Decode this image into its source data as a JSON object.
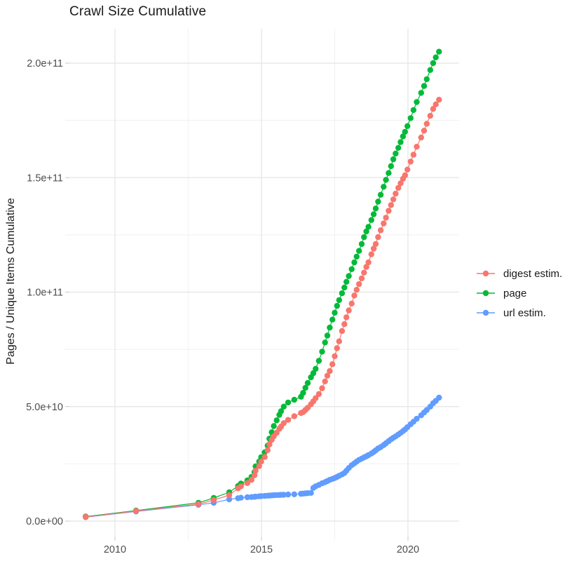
{
  "title": "Crawl Size Cumulative",
  "y_axis_title": "Pages / Unique Items Cumulative",
  "legend": {
    "items": [
      {
        "label": "digest estim.",
        "color": "#F8766D"
      },
      {
        "label": "page",
        "color": "#00BA38"
      },
      {
        "label": "url estim.",
        "color": "#619CFF"
      }
    ]
  },
  "chart_data": {
    "type": "line",
    "title": "Crawl Size Cumulative",
    "xlabel": "",
    "ylabel": "Pages / Unique Items Cumulative",
    "value_unit": "items, in billions (1e9)",
    "x_axis": {
      "ticks": [
        {
          "year": 2010,
          "label": "2010"
        },
        {
          "year": 2015,
          "label": "2015"
        },
        {
          "year": 2020,
          "label": "2020"
        }
      ],
      "minor_years": [
        2012.5,
        2017.5
      ],
      "range": [
        2008.45,
        2021.75
      ]
    },
    "y_axis": {
      "ticks": [
        {
          "value_billions": 0,
          "label": "0.0e+00"
        },
        {
          "value_billions": 50,
          "label": "5.0e+10"
        },
        {
          "value_billions": 100,
          "label": "1.0e+11"
        },
        {
          "value_billions": 150,
          "label": "1.5e+11"
        },
        {
          "value_billions": 200,
          "label": "2.0e+11"
        }
      ],
      "minor_billions": [
        25,
        75,
        125,
        175
      ],
      "range_billions": [
        -8,
        215
      ]
    },
    "legend_position": "right",
    "grid": true,
    "series": [
      {
        "name": "page",
        "color": "#00BA38",
        "points": [
          [
            2009.0,
            2.0
          ],
          [
            2010.72,
            4.6
          ],
          [
            2012.85,
            8.0
          ],
          [
            2013.37,
            10.1
          ],
          [
            2013.9,
            12.6
          ],
          [
            2014.2,
            15.3
          ],
          [
            2014.3,
            16.4
          ],
          [
            2014.52,
            17.8
          ],
          [
            2014.66,
            19.3
          ],
          [
            2014.76,
            21.4
          ],
          [
            2014.8,
            23.9
          ],
          [
            2014.92,
            26.0
          ],
          [
            2014.99,
            27.9
          ],
          [
            2015.11,
            30.0
          ],
          [
            2015.21,
            33.0
          ],
          [
            2015.27,
            36.0
          ],
          [
            2015.35,
            38.8
          ],
          [
            2015.42,
            41.5
          ],
          [
            2015.52,
            44.0
          ],
          [
            2015.61,
            46.4
          ],
          [
            2015.67,
            48.0
          ],
          [
            2015.76,
            50.0
          ],
          [
            2015.91,
            51.8
          ],
          [
            2016.12,
            53.0
          ],
          [
            2016.35,
            54.3
          ],
          [
            2016.42,
            56.0
          ],
          [
            2016.5,
            58.2
          ],
          [
            2016.58,
            60.3
          ],
          [
            2016.69,
            62.8
          ],
          [
            2016.77,
            64.6
          ],
          [
            2016.85,
            66.5
          ],
          [
            2016.96,
            70.0
          ],
          [
            2017.07,
            74.0
          ],
          [
            2017.17,
            78.0
          ],
          [
            2017.25,
            81.0
          ],
          [
            2017.33,
            84.5
          ],
          [
            2017.42,
            88.0
          ],
          [
            2017.5,
            91.0
          ],
          [
            2017.58,
            94.0
          ],
          [
            2017.65,
            96.5
          ],
          [
            2017.75,
            99.5
          ],
          [
            2017.83,
            102.0
          ],
          [
            2017.9,
            104.5
          ],
          [
            2017.98,
            107.0
          ],
          [
            2018.08,
            110.0
          ],
          [
            2018.17,
            113.0
          ],
          [
            2018.25,
            115.5
          ],
          [
            2018.33,
            118.0
          ],
          [
            2018.42,
            121.0
          ],
          [
            2018.5,
            124.0
          ],
          [
            2018.58,
            126.5
          ],
          [
            2018.65,
            128.5
          ],
          [
            2018.75,
            131.5
          ],
          [
            2018.83,
            134.0
          ],
          [
            2018.9,
            136.5
          ],
          [
            2018.98,
            139.5
          ],
          [
            2019.07,
            142.5
          ],
          [
            2019.17,
            146.0
          ],
          [
            2019.25,
            149.0
          ],
          [
            2019.34,
            152.0
          ],
          [
            2019.42,
            155.0
          ],
          [
            2019.5,
            158.0
          ],
          [
            2019.58,
            160.5
          ],
          [
            2019.67,
            163.0
          ],
          [
            2019.75,
            165.5
          ],
          [
            2019.83,
            168.0
          ],
          [
            2019.9,
            170.0
          ],
          [
            2019.98,
            172.5
          ],
          [
            2020.09,
            176.0
          ],
          [
            2020.19,
            179.5
          ],
          [
            2020.3,
            183.0
          ],
          [
            2020.45,
            187.0
          ],
          [
            2020.55,
            190.0
          ],
          [
            2020.64,
            193.0
          ],
          [
            2020.76,
            197.0
          ],
          [
            2020.86,
            200.0
          ],
          [
            2020.95,
            202.5
          ],
          [
            2021.06,
            205.0
          ]
        ]
      },
      {
        "name": "url estim.",
        "color": "#619CFF",
        "points": [
          [
            2009.0,
            1.7
          ],
          [
            2010.72,
            4.2
          ],
          [
            2012.85,
            7.1
          ],
          [
            2013.37,
            8.0
          ],
          [
            2013.9,
            9.5
          ],
          [
            2014.2,
            10.0
          ],
          [
            2014.3,
            10.2
          ],
          [
            2014.52,
            10.4
          ],
          [
            2014.66,
            10.5
          ],
          [
            2014.76,
            10.6
          ],
          [
            2014.8,
            10.7
          ],
          [
            2014.92,
            10.8
          ],
          [
            2014.99,
            10.9
          ],
          [
            2015.11,
            11.0
          ],
          [
            2015.21,
            11.1
          ],
          [
            2015.27,
            11.15
          ],
          [
            2015.35,
            11.2
          ],
          [
            2015.42,
            11.3
          ],
          [
            2015.52,
            11.35
          ],
          [
            2015.61,
            11.4
          ],
          [
            2015.67,
            11.45
          ],
          [
            2015.76,
            11.5
          ],
          [
            2015.91,
            11.6
          ],
          [
            2016.12,
            11.7
          ],
          [
            2016.35,
            11.9
          ],
          [
            2016.42,
            12.0
          ],
          [
            2016.5,
            12.1
          ],
          [
            2016.58,
            12.2
          ],
          [
            2016.69,
            12.3
          ],
          [
            2016.77,
            14.5
          ],
          [
            2016.85,
            15.2
          ],
          [
            2016.96,
            15.8
          ],
          [
            2017.07,
            16.5
          ],
          [
            2017.17,
            17.0
          ],
          [
            2017.25,
            17.5
          ],
          [
            2017.33,
            18.0
          ],
          [
            2017.42,
            18.4
          ],
          [
            2017.5,
            18.8
          ],
          [
            2017.58,
            19.3
          ],
          [
            2017.65,
            19.8
          ],
          [
            2017.75,
            20.4
          ],
          [
            2017.83,
            21.0
          ],
          [
            2017.9,
            22.0
          ],
          [
            2017.98,
            23.2
          ],
          [
            2018.08,
            24.4
          ],
          [
            2018.17,
            25.2
          ],
          [
            2018.25,
            26.0
          ],
          [
            2018.33,
            26.7
          ],
          [
            2018.42,
            27.3
          ],
          [
            2018.5,
            27.8
          ],
          [
            2018.58,
            28.3
          ],
          [
            2018.65,
            28.8
          ],
          [
            2018.75,
            29.5
          ],
          [
            2018.83,
            30.2
          ],
          [
            2018.9,
            30.9
          ],
          [
            2018.98,
            31.7
          ],
          [
            2019.07,
            32.3
          ],
          [
            2019.17,
            33.2
          ],
          [
            2019.25,
            34.0
          ],
          [
            2019.34,
            34.9
          ],
          [
            2019.42,
            35.7
          ],
          [
            2019.5,
            36.4
          ],
          [
            2019.58,
            37.0
          ],
          [
            2019.67,
            37.8
          ],
          [
            2019.75,
            38.5
          ],
          [
            2019.83,
            39.3
          ],
          [
            2019.9,
            40.0
          ],
          [
            2019.98,
            41.0
          ],
          [
            2020.09,
            42.3
          ],
          [
            2020.19,
            43.4
          ],
          [
            2020.3,
            44.7
          ],
          [
            2020.45,
            46.2
          ],
          [
            2020.55,
            47.4
          ],
          [
            2020.64,
            48.5
          ],
          [
            2020.76,
            50.0
          ],
          [
            2020.86,
            51.5
          ],
          [
            2020.95,
            52.5
          ],
          [
            2021.06,
            53.9
          ]
        ]
      },
      {
        "name": "digest estim.",
        "color": "#F8766D",
        "points": [
          [
            2009.0,
            1.8
          ],
          [
            2010.72,
            4.4
          ],
          [
            2012.85,
            7.4
          ],
          [
            2013.37,
            9.2
          ],
          [
            2013.9,
            11.3
          ],
          [
            2014.2,
            14.3
          ],
          [
            2014.3,
            15.2
          ],
          [
            2014.52,
            16.6
          ],
          [
            2014.66,
            18.0
          ],
          [
            2014.76,
            20.0
          ],
          [
            2014.8,
            22.0
          ],
          [
            2014.92,
            24.0
          ],
          [
            2014.99,
            26.0
          ],
          [
            2015.11,
            28.0
          ],
          [
            2015.21,
            31.0
          ],
          [
            2015.27,
            33.5
          ],
          [
            2015.35,
            35.5
          ],
          [
            2015.42,
            37.0
          ],
          [
            2015.52,
            38.6
          ],
          [
            2015.61,
            40.3
          ],
          [
            2015.67,
            41.3
          ],
          [
            2015.76,
            42.8
          ],
          [
            2015.91,
            44.2
          ],
          [
            2016.12,
            45.8
          ],
          [
            2016.35,
            47.2
          ],
          [
            2016.42,
            47.6
          ],
          [
            2016.5,
            48.5
          ],
          [
            2016.58,
            49.5
          ],
          [
            2016.69,
            51.0
          ],
          [
            2016.77,
            52.3
          ],
          [
            2016.85,
            53.7
          ],
          [
            2016.96,
            55.5
          ],
          [
            2017.07,
            58.0
          ],
          [
            2017.17,
            61.0
          ],
          [
            2017.25,
            63.5
          ],
          [
            2017.33,
            65.5
          ],
          [
            2017.42,
            68.5
          ],
          [
            2017.5,
            72.0
          ],
          [
            2017.58,
            75.5
          ],
          [
            2017.65,
            78.5
          ],
          [
            2017.75,
            83.0
          ],
          [
            2017.83,
            86.0
          ],
          [
            2017.9,
            89.0
          ],
          [
            2017.98,
            92.0
          ],
          [
            2018.08,
            95.0
          ],
          [
            2018.17,
            98.5
          ],
          [
            2018.25,
            101.0
          ],
          [
            2018.33,
            103.5
          ],
          [
            2018.42,
            106.0
          ],
          [
            2018.5,
            108.5
          ],
          [
            2018.58,
            111.0
          ],
          [
            2018.65,
            113.0
          ],
          [
            2018.75,
            116.5
          ],
          [
            2018.83,
            119.0
          ],
          [
            2018.9,
            121.0
          ],
          [
            2018.98,
            124.0
          ],
          [
            2019.07,
            127.0
          ],
          [
            2019.17,
            130.0
          ],
          [
            2019.25,
            132.5
          ],
          [
            2019.34,
            135.5
          ],
          [
            2019.42,
            138.0
          ],
          [
            2019.5,
            140.5
          ],
          [
            2019.58,
            143.0
          ],
          [
            2019.67,
            145.5
          ],
          [
            2019.75,
            147.5
          ],
          [
            2019.83,
            149.5
          ],
          [
            2019.9,
            151.0
          ],
          [
            2019.98,
            153.5
          ],
          [
            2020.09,
            157.0
          ],
          [
            2020.19,
            160.0
          ],
          [
            2020.3,
            163.5
          ],
          [
            2020.45,
            167.5
          ],
          [
            2020.55,
            170.5
          ],
          [
            2020.64,
            173.5
          ],
          [
            2020.76,
            177.0
          ],
          [
            2020.86,
            180.0
          ],
          [
            2020.95,
            182.0
          ],
          [
            2021.06,
            184.0
          ]
        ]
      }
    ]
  }
}
